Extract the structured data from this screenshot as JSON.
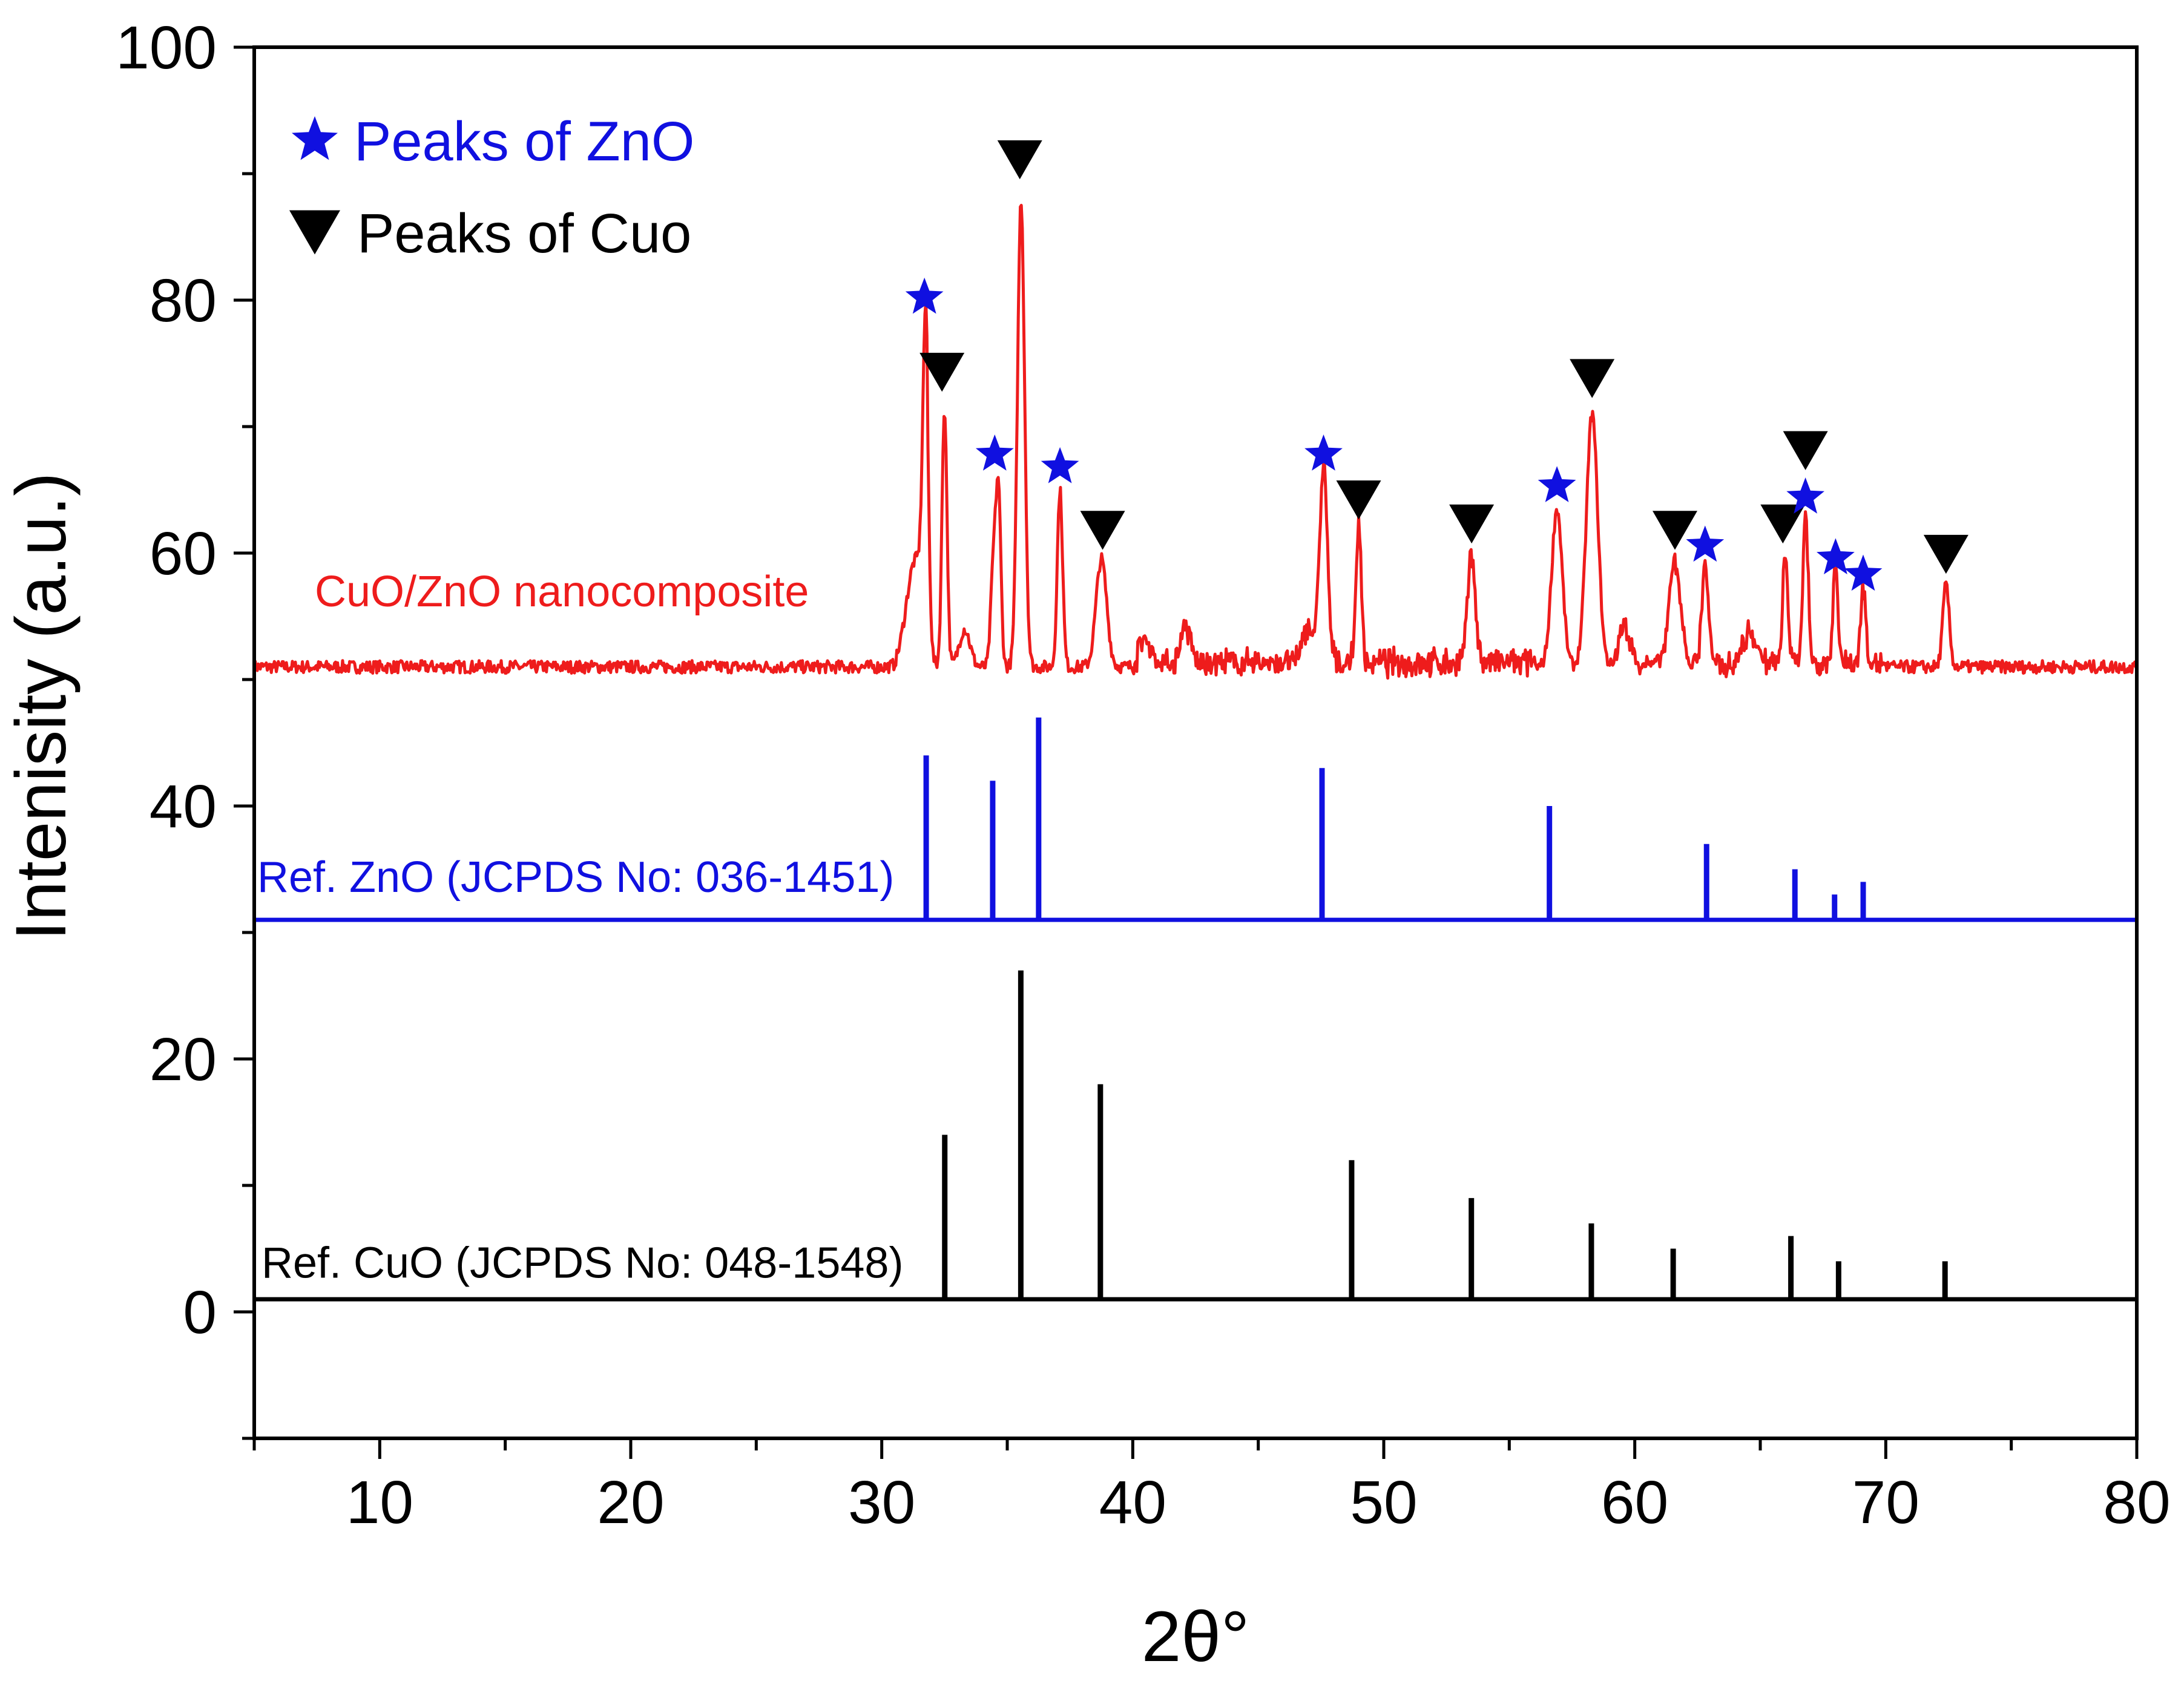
{
  "chart_data": {
    "type": "line",
    "title": "",
    "xlabel": "2θ°",
    "ylabel": "Intenisity (a.u.)",
    "xlim": [
      5,
      80
    ],
    "ylim": [
      -10,
      100
    ],
    "x_ticks": [
      10,
      20,
      30,
      40,
      50,
      60,
      70,
      80
    ],
    "y_ticks": [
      0,
      20,
      40,
      60,
      80,
      100
    ],
    "x_minor_step": 5,
    "y_minor_step": 10,
    "grid": false,
    "legend": {
      "position": "top-left",
      "entries": [
        {
          "label": "Peaks of ZnO",
          "marker": "star",
          "color": "#1010e0"
        },
        {
          "label": "Peaks of Cuo",
          "marker": "down-triangle",
          "color": "#000000"
        }
      ]
    },
    "colors": {
      "composite": "#ee1c1c",
      "zno": "#1010e0",
      "cuo": "#000000",
      "axis": "#000000"
    },
    "series": [
      {
        "name": "CuO/ZnO nanocomposite",
        "label": "CuO/ZnO nanocomposite",
        "baseline": 51,
        "noise_amplitude": 0.5,
        "peaks": [
          {
            "x": 31.3,
            "h": 5.5,
            "w": 0.45
          },
          {
            "x": 31.75,
            "h": 22,
            "w": 0.16
          },
          {
            "x": 32.5,
            "h": 20.5,
            "w": 0.14
          },
          {
            "x": 33.3,
            "h": 3,
            "w": 0.3
          },
          {
            "x": 34.45,
            "h": 8,
            "w": 0.15
          },
          {
            "x": 34.65,
            "h": 13.5,
            "w": 0.14
          },
          {
            "x": 35.55,
            "h": 37,
            "w": 0.2
          },
          {
            "x": 37.1,
            "h": 14,
            "w": 0.15
          },
          {
            "x": 38.75,
            "h": 8.5,
            "w": 0.3
          },
          {
            "x": 40.5,
            "h": 2,
            "w": 0.3
          },
          {
            "x": 42.1,
            "h": 3,
            "w": 0.25
          },
          {
            "x": 47.0,
            "h": 3,
            "w": 0.3
          },
          {
            "x": 47.6,
            "h": 15.5,
            "w": 0.22
          },
          {
            "x": 49.0,
            "h": 11,
            "w": 0.15
          },
          {
            "x": 53.5,
            "h": 8.5,
            "w": 0.22
          },
          {
            "x": 56.9,
            "h": 12.5,
            "w": 0.3
          },
          {
            "x": 58.3,
            "h": 20,
            "w": 0.32
          },
          {
            "x": 59.6,
            "h": 3,
            "w": 0.3
          },
          {
            "x": 61.6,
            "h": 8,
            "w": 0.32
          },
          {
            "x": 62.8,
            "h": 8,
            "w": 0.18
          },
          {
            "x": 64.6,
            "h": 2.5,
            "w": 0.4
          },
          {
            "x": 66.0,
            "h": 9,
            "w": 0.14
          },
          {
            "x": 66.8,
            "h": 12,
            "w": 0.15
          },
          {
            "x": 68.0,
            "h": 8,
            "w": 0.14
          },
          {
            "x": 69.1,
            "h": 6,
            "w": 0.15
          },
          {
            "x": 72.4,
            "h": 6.5,
            "w": 0.18
          }
        ]
      },
      {
        "name": "Ref. ZnO",
        "label": "Ref. ZnO (JCPDS No: 036-1451)",
        "baseline": 31,
        "sticks": [
          {
            "x": 31.77,
            "y": 44
          },
          {
            "x": 34.42,
            "y": 42
          },
          {
            "x": 36.25,
            "y": 47
          },
          {
            "x": 47.54,
            "y": 43
          },
          {
            "x": 56.6,
            "y": 40
          },
          {
            "x": 62.86,
            "y": 37
          },
          {
            "x": 66.38,
            "y": 35
          },
          {
            "x": 67.96,
            "y": 33
          },
          {
            "x": 69.1,
            "y": 34
          }
        ]
      },
      {
        "name": "Ref. CuO",
        "label": "Ref. CuO (JCPDS No: 048-1548)",
        "baseline": 1,
        "sticks": [
          {
            "x": 32.51,
            "y": 14
          },
          {
            "x": 35.54,
            "y": 27
          },
          {
            "x": 38.71,
            "y": 18
          },
          {
            "x": 48.72,
            "y": 12
          },
          {
            "x": 53.49,
            "y": 9
          },
          {
            "x": 58.27,
            "y": 7
          },
          {
            "x": 61.53,
            "y": 5
          },
          {
            "x": 66.22,
            "y": 6
          },
          {
            "x": 68.12,
            "y": 4
          },
          {
            "x": 72.36,
            "y": 4
          }
        ]
      }
    ],
    "annotations": [
      {
        "marker": "star",
        "phase": "ZnO",
        "x": 31.7,
        "y": 80.2
      },
      {
        "marker": "down-triangle",
        "phase": "CuO",
        "x": 32.4,
        "y": 74.3
      },
      {
        "marker": "star",
        "phase": "ZnO",
        "x": 34.5,
        "y": 67.8
      },
      {
        "marker": "down-triangle",
        "phase": "CuO",
        "x": 35.5,
        "y": 91.1
      },
      {
        "marker": "star",
        "phase": "ZnO",
        "x": 37.1,
        "y": 66.8
      },
      {
        "marker": "down-triangle",
        "phase": "CuO",
        "x": 38.8,
        "y": 61.8
      },
      {
        "marker": "star",
        "phase": "ZnO",
        "x": 47.6,
        "y": 67.8
      },
      {
        "marker": "down-triangle",
        "phase": "CuO",
        "x": 49.0,
        "y": 64.2
      },
      {
        "marker": "down-triangle",
        "phase": "CuO",
        "x": 53.5,
        "y": 62.3
      },
      {
        "marker": "star",
        "phase": "ZnO",
        "x": 56.9,
        "y": 65.3
      },
      {
        "marker": "down-triangle",
        "phase": "CuO",
        "x": 58.3,
        "y": 73.8
      },
      {
        "marker": "down-triangle",
        "phase": "CuO",
        "x": 61.6,
        "y": 61.8
      },
      {
        "marker": "star",
        "phase": "ZnO",
        "x": 62.8,
        "y": 60.6
      },
      {
        "marker": "down-triangle",
        "phase": "CuO",
        "x": 65.9,
        "y": 62.3
      },
      {
        "marker": "star",
        "phase": "ZnO",
        "x": 66.8,
        "y": 64.4
      },
      {
        "marker": "down-triangle",
        "phase": "CuO",
        "x": 66.8,
        "y": 68.1
      },
      {
        "marker": "star",
        "phase": "ZnO",
        "x": 68.0,
        "y": 59.6
      },
      {
        "marker": "star",
        "phase": "ZnO",
        "x": 69.1,
        "y": 58.3
      },
      {
        "marker": "down-triangle",
        "phase": "CuO",
        "x": 72.4,
        "y": 59.9
      }
    ]
  }
}
